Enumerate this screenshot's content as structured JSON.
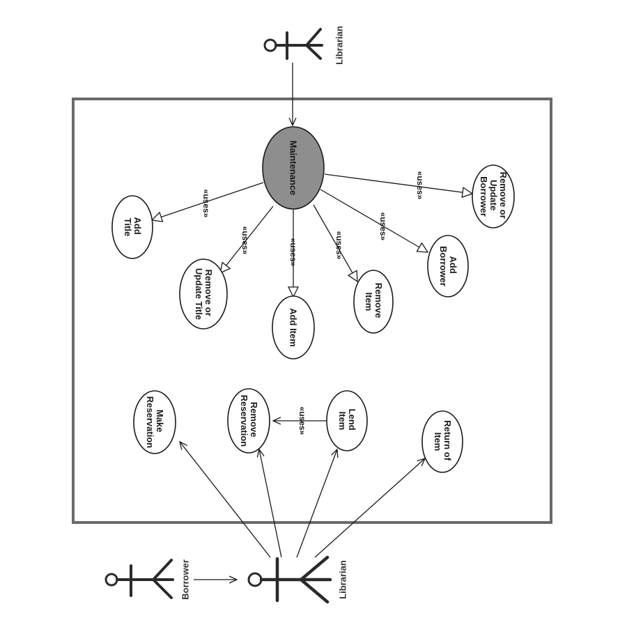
{
  "actors": {
    "top_librarian": "Librarian",
    "borrower": "Borrower",
    "bottom_librarian": "Librarian"
  },
  "use_cases": {
    "maintenance": [
      "Maintenance"
    ],
    "add_title": [
      "Add",
      "Title"
    ],
    "remove_update_title": [
      "Remove or",
      "Update Title"
    ],
    "add_item": [
      "Add Item"
    ],
    "remove_item": [
      "Remove",
      "Item"
    ],
    "add_borrower": [
      "Add",
      "Borrower"
    ],
    "remove_update_borrower": [
      "Remove or",
      "Update",
      "Borrower"
    ],
    "make_reservation": [
      "Make",
      "Reservation"
    ],
    "remove_reservation": [
      "Remove",
      "Reservation"
    ],
    "lend_item": [
      "Lend",
      "Item"
    ],
    "return_of_item": [
      "Return of",
      "Item"
    ]
  },
  "relations": {
    "uses_label": "«uses»"
  },
  "colors": {
    "maintenance_fill": "#8e8e8e",
    "boundary": "#6a6a6a",
    "ink": "#1a1a1a"
  }
}
